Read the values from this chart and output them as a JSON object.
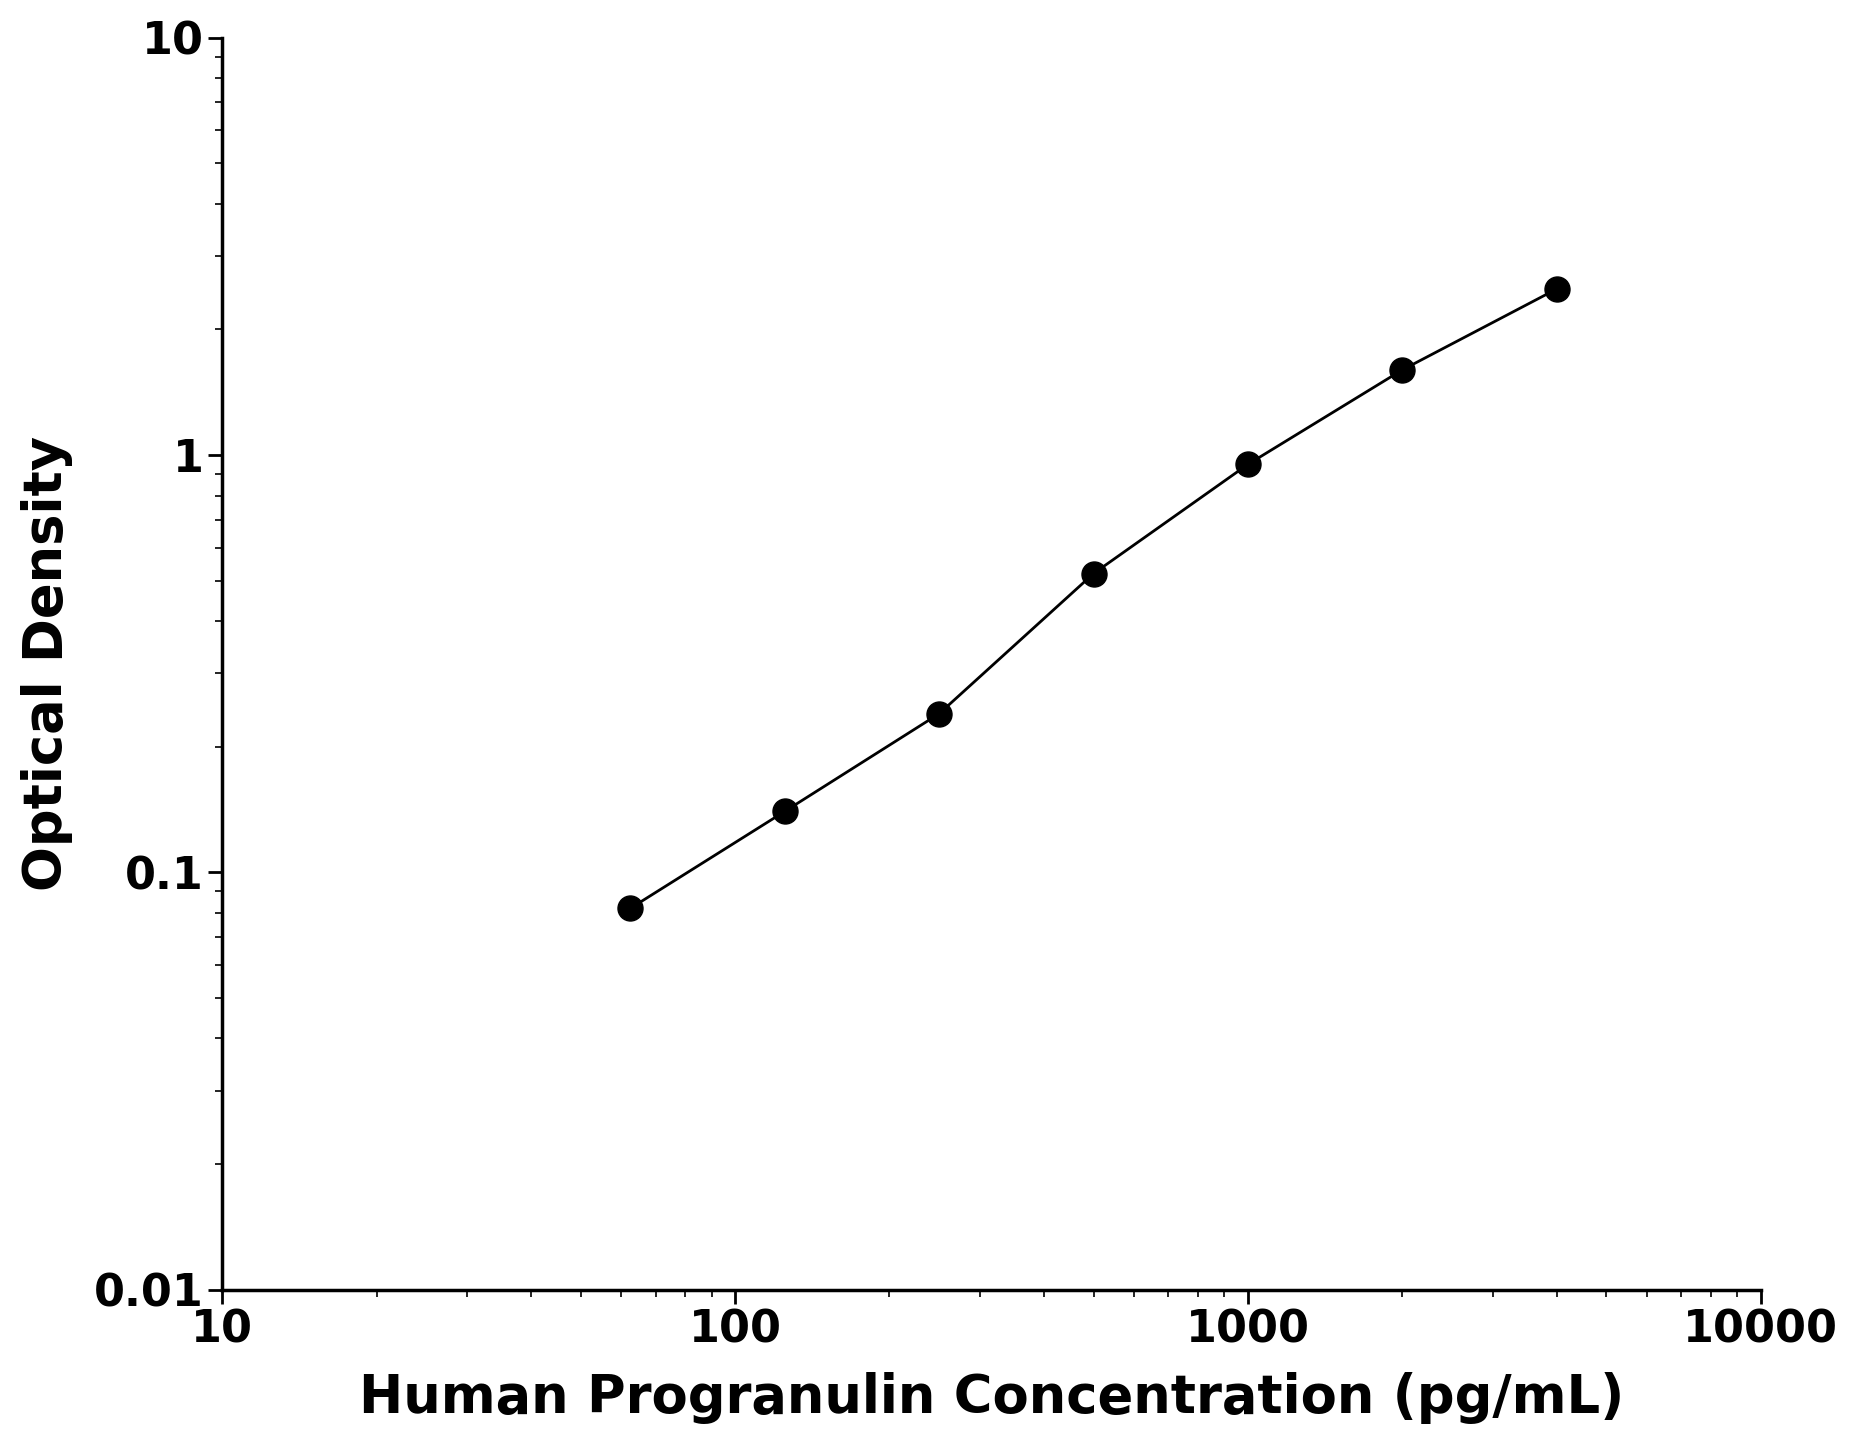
{
  "x": [
    62.5,
    125,
    250,
    500,
    1000,
    2000,
    4000
  ],
  "y": [
    0.082,
    0.14,
    0.24,
    0.52,
    0.95,
    1.6,
    2.5
  ],
  "xlabel": "Human Progranulin Concentration (pg/mL)",
  "ylabel": "Optical Density",
  "xlim": [
    10,
    10000
  ],
  "ylim": [
    0.01,
    10
  ],
  "xticks": [
    10,
    100,
    1000,
    10000
  ],
  "xtick_labels": [
    "10",
    "100",
    "1000",
    "10000"
  ],
  "yticks": [
    0.01,
    0.1,
    1,
    10
  ],
  "ytick_labels": [
    "0.01",
    "0.1",
    "1",
    "10"
  ],
  "line_color": "#000000",
  "marker_color": "#000000",
  "marker_size": 18,
  "line_width": 2.0,
  "background_color": "#ffffff",
  "xlabel_fontsize": 38,
  "ylabel_fontsize": 38,
  "tick_fontsize": 32,
  "tick_label_color": "#000000"
}
